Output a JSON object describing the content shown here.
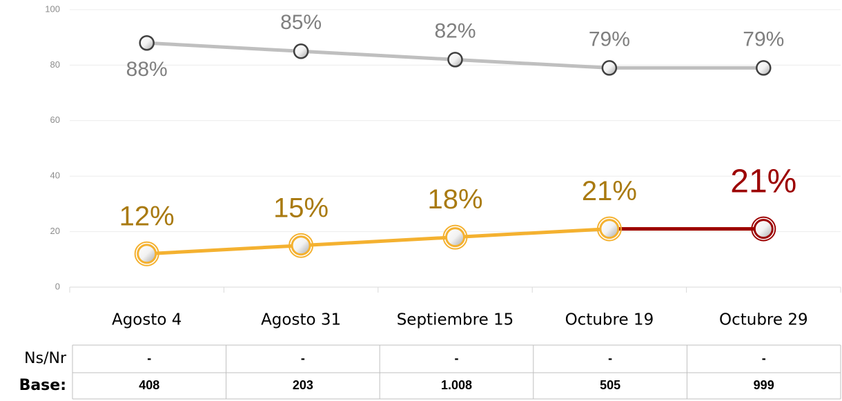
{
  "chart_data": {
    "type": "line",
    "categories": [
      "Agosto 4",
      "Agosto 31",
      "Septiembre 15",
      "Octubre 19",
      "Octubre 29"
    ],
    "series": [
      {
        "color": "#bfbfbf",
        "values": [
          88,
          85,
          82,
          79,
          79
        ],
        "value_labels": [
          "88%",
          "85%",
          "82%",
          "79%",
          "79%"
        ],
        "label_color": "#7f7f7f"
      },
      {
        "color": "#f4b130",
        "values": [
          12,
          15,
          18,
          21,
          21
        ],
        "value_labels": [
          "12%",
          "15%",
          "18%",
          "21%",
          "21%"
        ],
        "label_color": "#a97a10",
        "last_color": "#9c0000"
      }
    ],
    "ylim": [
      0,
      100
    ],
    "yticks": [
      0,
      20,
      40,
      60,
      80,
      100
    ],
    "grid": true
  },
  "table": {
    "rows": [
      {
        "label": "Ns/Nr",
        "cells": [
          "-",
          "-",
          "-",
          "-",
          "-"
        ]
      },
      {
        "label": "Base:",
        "cells": [
          "408",
          "203",
          "1.008",
          "505",
          "999"
        ]
      }
    ]
  }
}
